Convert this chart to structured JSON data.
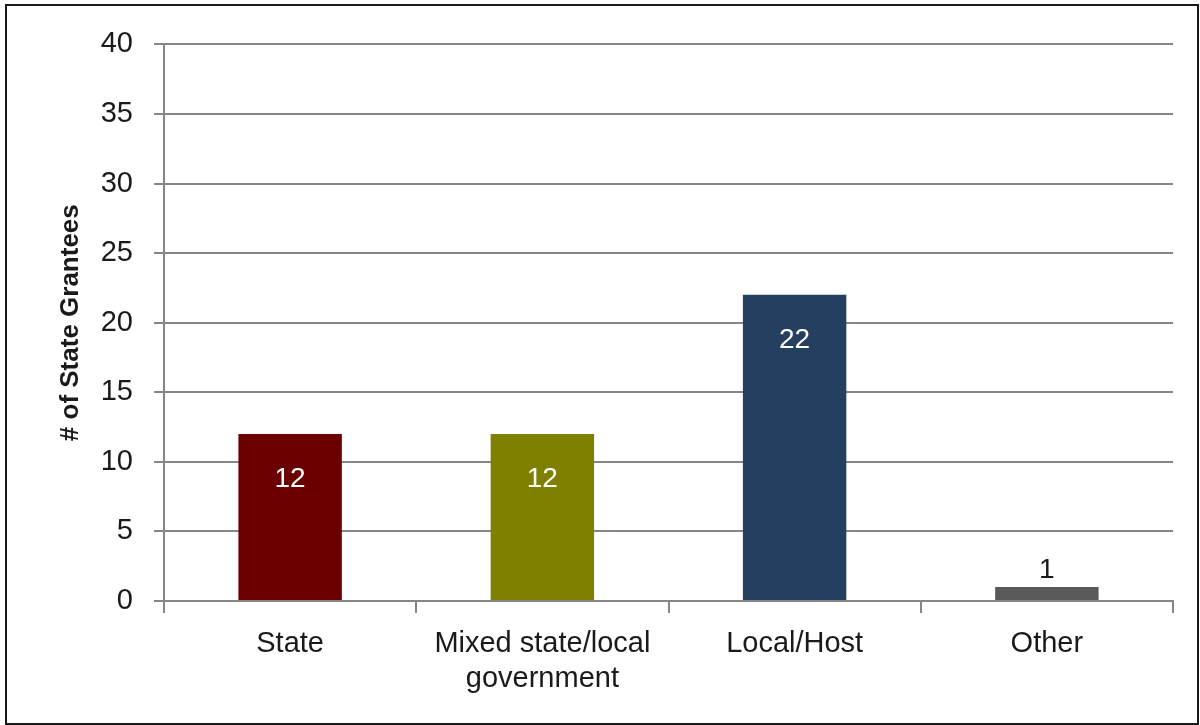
{
  "chart_data": {
    "type": "bar",
    "ylabel": "# of State Grantees",
    "categories": [
      "State",
      "Mixed state/local government",
      "Local/Host",
      "Other"
    ],
    "values": [
      12,
      12,
      22,
      1
    ],
    "colors": [
      "#6b0000",
      "#808000",
      "#243f60",
      "#595959"
    ],
    "ylim": [
      0,
      40
    ],
    "yticks": [
      0,
      5,
      10,
      15,
      20,
      25,
      30,
      35,
      40
    ],
    "grid": "y",
    "data_labels": true
  }
}
